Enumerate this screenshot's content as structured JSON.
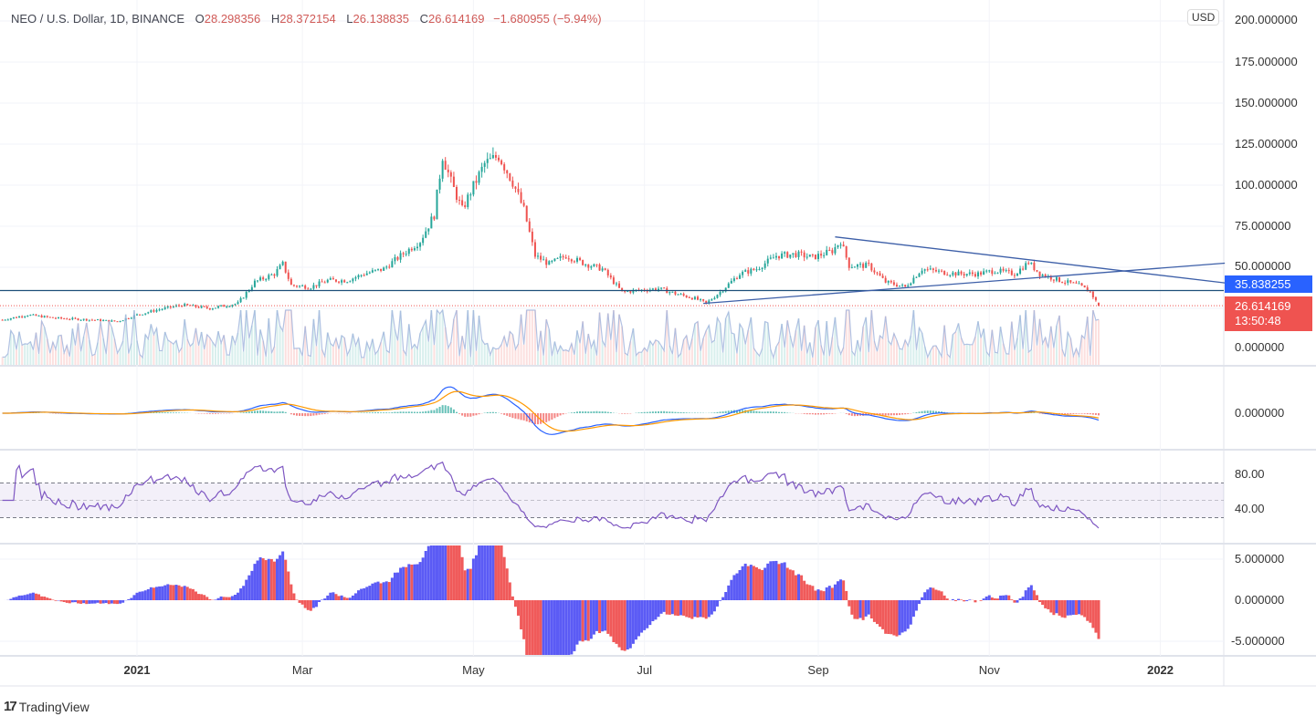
{
  "header": {
    "symbol": "NEO / U.S. Dollar, 1D, BINANCE",
    "open_label": "O",
    "open": "28.298356",
    "high_label": "H",
    "high": "28.372154",
    "low_label": "L",
    "low": "26.138835",
    "close_label": "C",
    "close": "26.614169",
    "change": "−1.680955 (−5.94%)"
  },
  "price_axis": {
    "currency": "USD",
    "ticks": [
      "200.000000",
      "175.000000",
      "150.000000",
      "125.000000",
      "100.000000",
      "75.000000",
      "50.000000",
      "0.000000"
    ],
    "horizontal_line_label": "35.838255",
    "last_price_label": "26.614169",
    "countdown": "13:50:48"
  },
  "macd_axis": {
    "ticks": [
      "0.000000"
    ]
  },
  "rsi_axis": {
    "ticks": [
      "80.00",
      "40.00"
    ]
  },
  "osc_axis": {
    "ticks": [
      "5.000000",
      "0.000000",
      "-5.000000"
    ]
  },
  "x_axis": {
    "ticks": [
      {
        "label": "2021",
        "date": "2021-01-01",
        "bold": true
      },
      {
        "label": "Mar",
        "date": "2021-03-01",
        "bold": false
      },
      {
        "label": "May",
        "date": "2021-05-01",
        "bold": false
      },
      {
        "label": "Jul",
        "date": "2021-07-01",
        "bold": false
      },
      {
        "label": "Sep",
        "date": "2021-09-01",
        "bold": false
      },
      {
        "label": "Nov",
        "date": "2021-11-01",
        "bold": false
      },
      {
        "label": "2022",
        "date": "2022-01-01",
        "bold": true
      }
    ]
  },
  "branding": {
    "name": "TradingView"
  },
  "colors": {
    "up": "#26a69a",
    "down": "#ef5350",
    "line_blue": "#2962ff",
    "trend": "#3d5fa8",
    "macd": "#2962ff",
    "signal": "#ff9800",
    "rsi": "#7e57c2",
    "osc_pos": "#5b5bf5",
    "osc_neg": "#f05a5a"
  },
  "chart_data": {
    "type": "candlestick",
    "title": "NEO / U.S. Dollar, 1D, BINANCE",
    "ylim": [
      0,
      200
    ],
    "series": [
      {
        "values_description_free": true,
        "close": [
          [
            "2020-11-14",
            18
          ],
          [
            "2020-11-23",
            21
          ],
          [
            "2020-12-03",
            19
          ],
          [
            "2020-12-16",
            18
          ],
          [
            "2020-12-25",
            17
          ],
          [
            "2021-01-01",
            21
          ],
          [
            "2021-01-08",
            24
          ],
          [
            "2021-01-17",
            27
          ],
          [
            "2021-01-27",
            25
          ],
          [
            "2021-02-06",
            28
          ],
          [
            "2021-02-12",
            41
          ],
          [
            "2021-02-19",
            46
          ],
          [
            "2021-02-22",
            52
          ],
          [
            "2021-02-25",
            39
          ],
          [
            "2021-03-04",
            38
          ],
          [
            "2021-03-10",
            42
          ],
          [
            "2021-03-17",
            42
          ],
          [
            "2021-03-23",
            46
          ],
          [
            "2021-03-30",
            49
          ],
          [
            "2021-04-05",
            57
          ],
          [
            "2021-04-12",
            66
          ],
          [
            "2021-04-17",
            82
          ],
          [
            "2021-04-20",
            118
          ],
          [
            "2021-04-23",
            102
          ],
          [
            "2021-04-27",
            85
          ],
          [
            "2021-04-30",
            96
          ],
          [
            "2021-05-05",
            113
          ],
          [
            "2021-05-10",
            118
          ],
          [
            "2021-05-15",
            102
          ],
          [
            "2021-05-19",
            85
          ],
          [
            "2021-05-23",
            57
          ],
          [
            "2021-05-28",
            52
          ],
          [
            "2021-06-03",
            57
          ],
          [
            "2021-06-10",
            52
          ],
          [
            "2021-06-16",
            49
          ],
          [
            "2021-06-23",
            35
          ],
          [
            "2021-06-29",
            36
          ],
          [
            "2021-07-06",
            37
          ],
          [
            "2021-07-12",
            34
          ],
          [
            "2021-07-19",
            31
          ],
          [
            "2021-07-23",
            28
          ],
          [
            "2021-07-28",
            35
          ],
          [
            "2021-08-04",
            46
          ],
          [
            "2021-08-10",
            49
          ],
          [
            "2021-08-17",
            57
          ],
          [
            "2021-08-24",
            58
          ],
          [
            "2021-08-30",
            56
          ],
          [
            "2021-09-06",
            60
          ],
          [
            "2021-09-09",
            66
          ],
          [
            "2021-09-12",
            51
          ],
          [
            "2021-09-19",
            51
          ],
          [
            "2021-09-25",
            41
          ],
          [
            "2021-10-02",
            38
          ],
          [
            "2021-10-08",
            49
          ],
          [
            "2021-10-15",
            47
          ],
          [
            "2021-10-21",
            46
          ],
          [
            "2021-10-28",
            46
          ],
          [
            "2021-11-03",
            48
          ],
          [
            "2021-11-10",
            46
          ],
          [
            "2021-11-15",
            53
          ],
          [
            "2021-11-19",
            46
          ],
          [
            "2021-11-26",
            42
          ],
          [
            "2021-12-03",
            39
          ],
          [
            "2021-12-07",
            35
          ],
          [
            "2021-12-10",
            26.61
          ]
        ]
      }
    ],
    "horizontal_line": 35.838255,
    "last_price": 26.614169,
    "trendlines": [
      {
        "from": [
          "2021-07-22",
          28.0
        ],
        "to": [
          "2022-01-24",
          52.5
        ]
      },
      {
        "from": [
          "2021-09-07",
          68.5
        ],
        "to": [
          "2022-01-24",
          40.5
        ]
      }
    ],
    "rsi_bands": [
      30,
      50,
      70
    ],
    "grid": true
  }
}
